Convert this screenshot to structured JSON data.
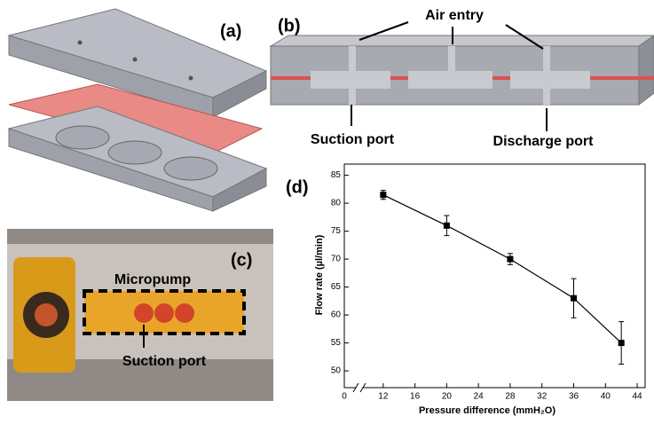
{
  "panels": {
    "a": {
      "label": "(a)"
    },
    "b": {
      "label": "(b)",
      "annotations": [
        "Air entry",
        "Suction port",
        "Discharge port"
      ]
    },
    "c": {
      "label": "(c)",
      "annotations": [
        "Micropump",
        "Suction port"
      ]
    },
    "d": {
      "label": "(d)"
    }
  },
  "chart_data": {
    "type": "line",
    "x_label": "Pressure difference (mmH₂O)",
    "y_label": "Flow rate (µl/min)",
    "x": [
      12,
      20,
      28,
      36,
      42
    ],
    "values": [
      81.5,
      76,
      70,
      63,
      55
    ],
    "errors": [
      0.8,
      1.8,
      1,
      3.5,
      3.8
    ],
    "color": "#000000",
    "xlim": [
      0,
      45
    ],
    "x_break_at": 9,
    "xticks": [
      0,
      12,
      16,
      20,
      24,
      28,
      32,
      36,
      40,
      44
    ],
    "ylim": [
      47,
      87
    ],
    "yticks": [
      50,
      55,
      60,
      65,
      70,
      75,
      80,
      85
    ]
  }
}
